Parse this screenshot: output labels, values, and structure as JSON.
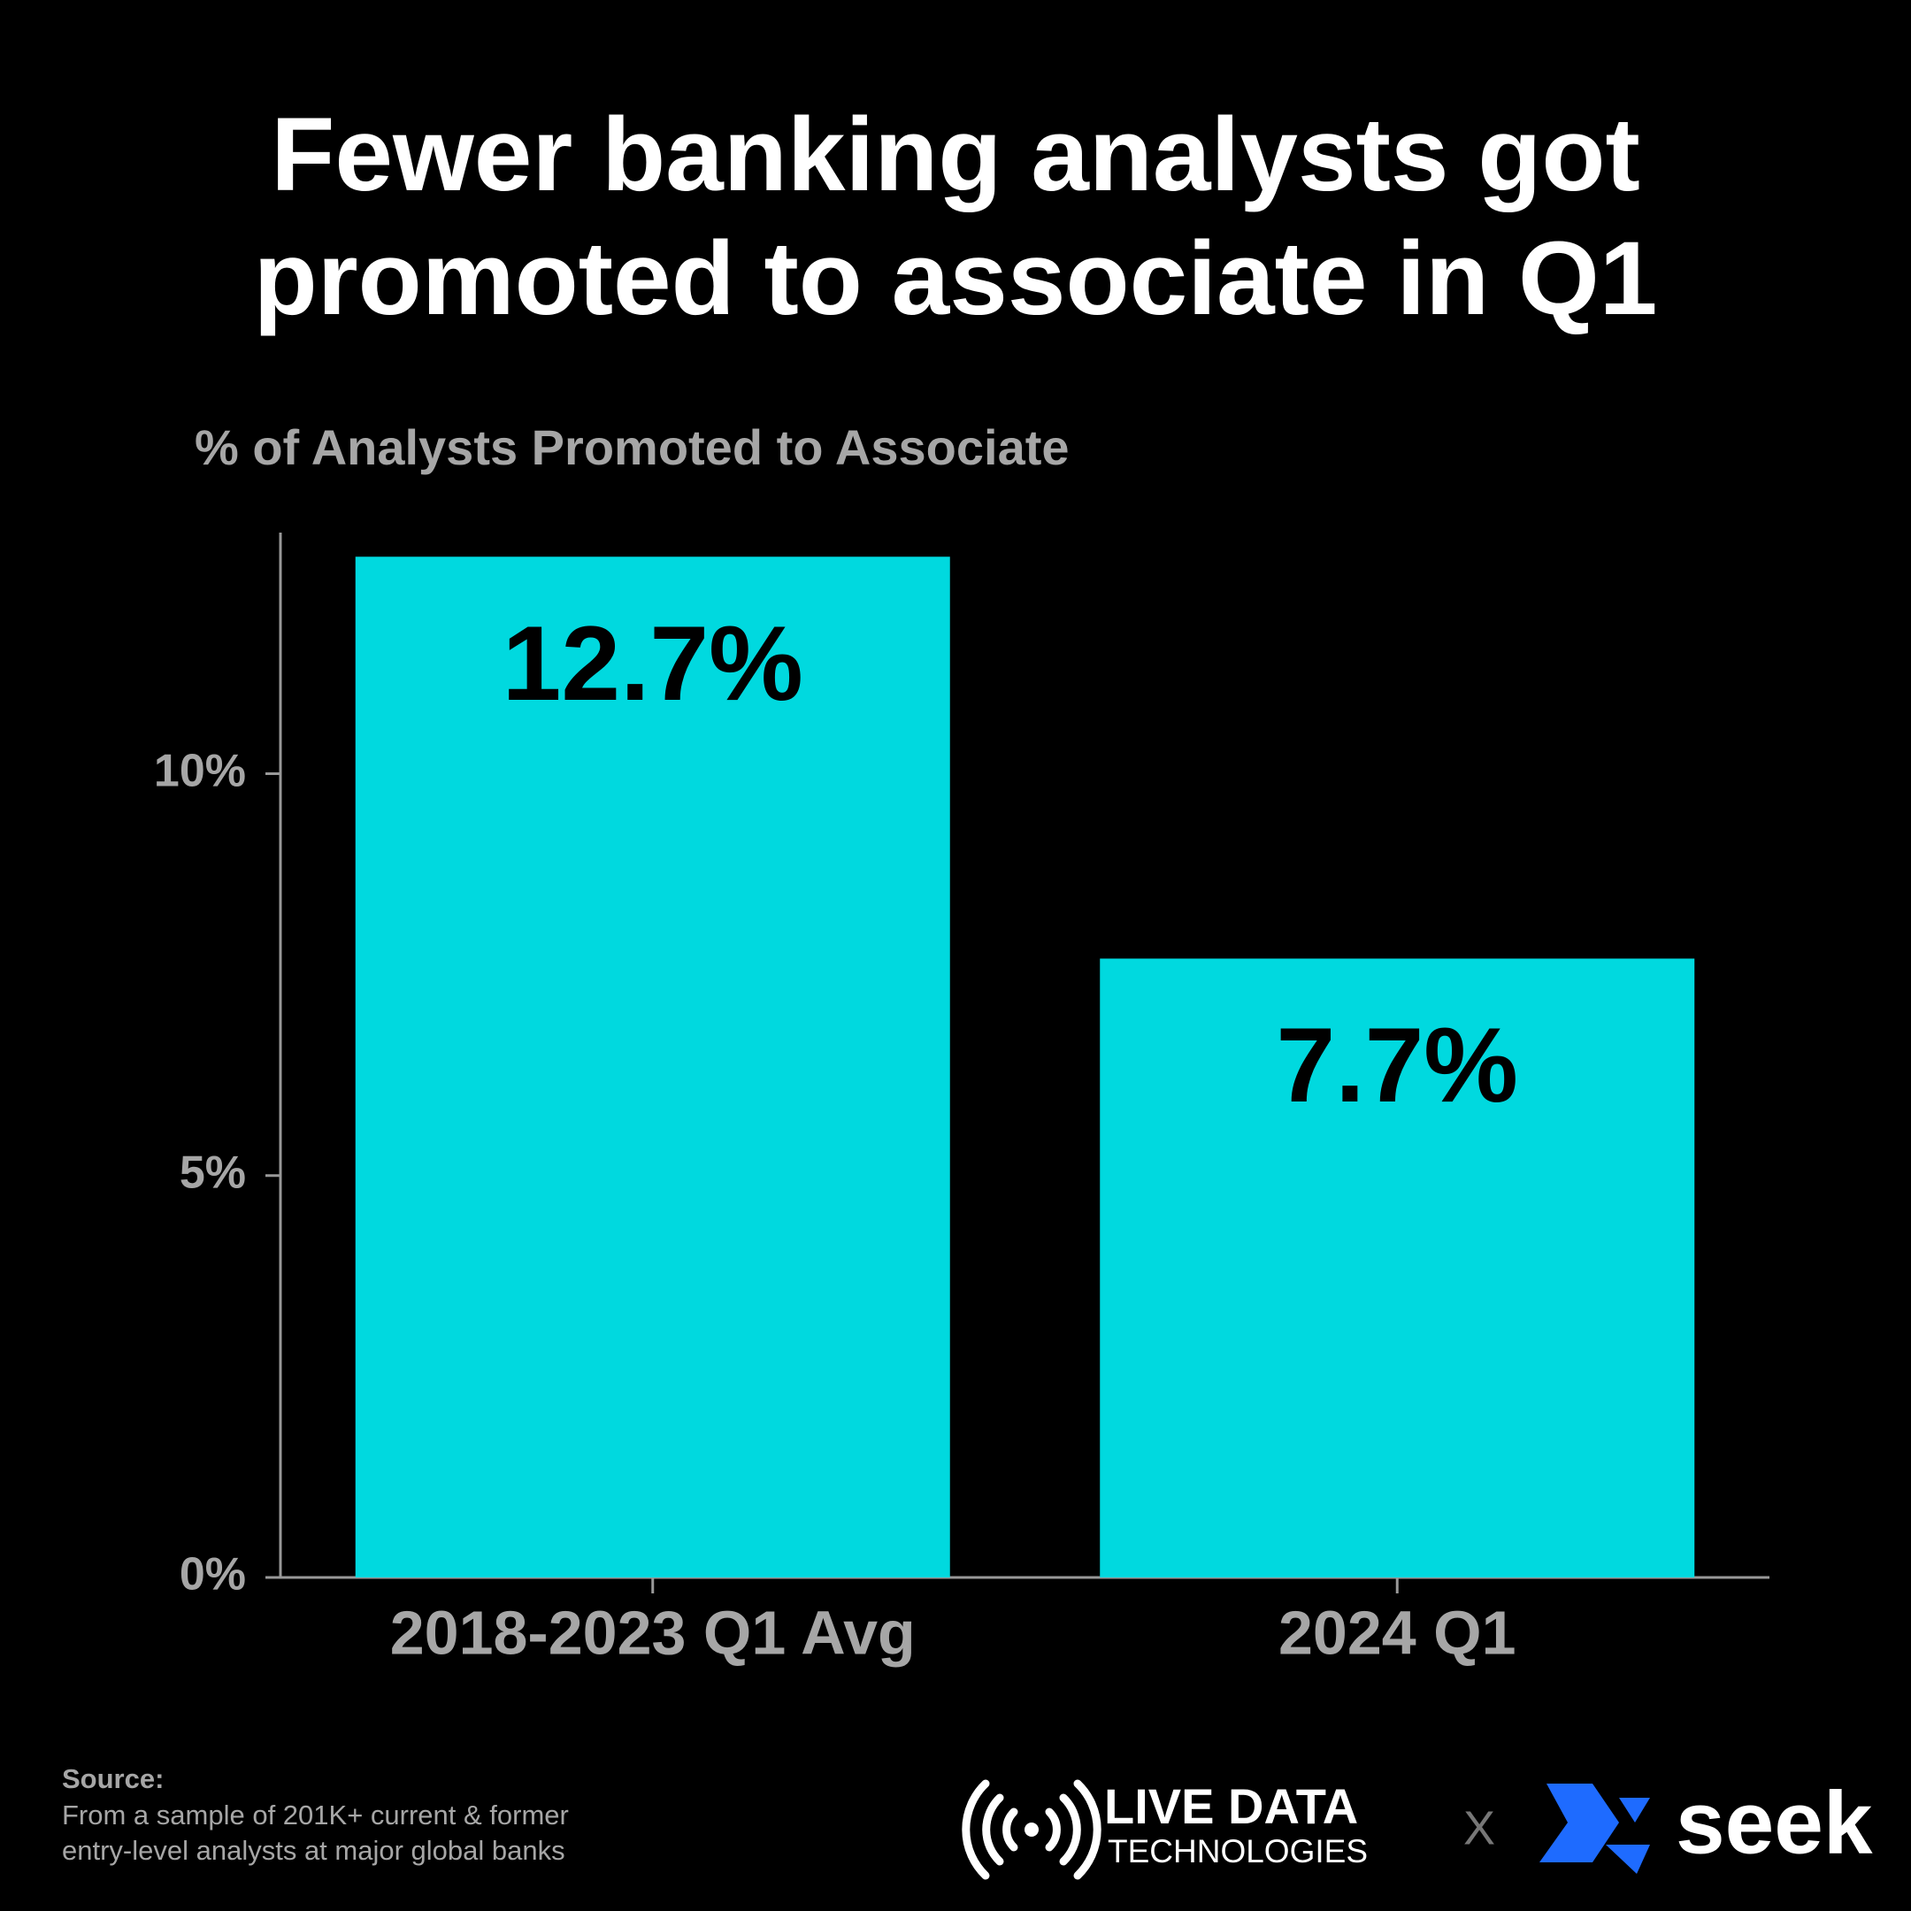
{
  "chart_data": {
    "type": "bar",
    "title": "Fewer banking analysts got promoted to associate in Q1",
    "y_label": "% of Analysts Promoted to Associate",
    "categories": [
      "2018-2023 Q1 Avg",
      "2024 Q1"
    ],
    "values": [
      12.7,
      7.7
    ],
    "value_labels": [
      "12.7%",
      "7.7%"
    ],
    "color": "#00d9df",
    "ylim": [
      0,
      13
    ],
    "yticks": [
      {
        "value": 0,
        "label": "0%"
      },
      {
        "value": 5,
        "label": "5%"
      },
      {
        "value": 10,
        "label": "10%"
      }
    ],
    "grid": false
  },
  "footer": {
    "source_title": "Source:",
    "source_lines": [
      "From a sample of 201K+ current & former",
      "entry-level analysts at major global banks"
    ],
    "logo_1_line_1": "LIVE DATA",
    "logo_1_line_2": "TECHNOLOGIES",
    "separator": "X",
    "logo_2": "seek"
  }
}
